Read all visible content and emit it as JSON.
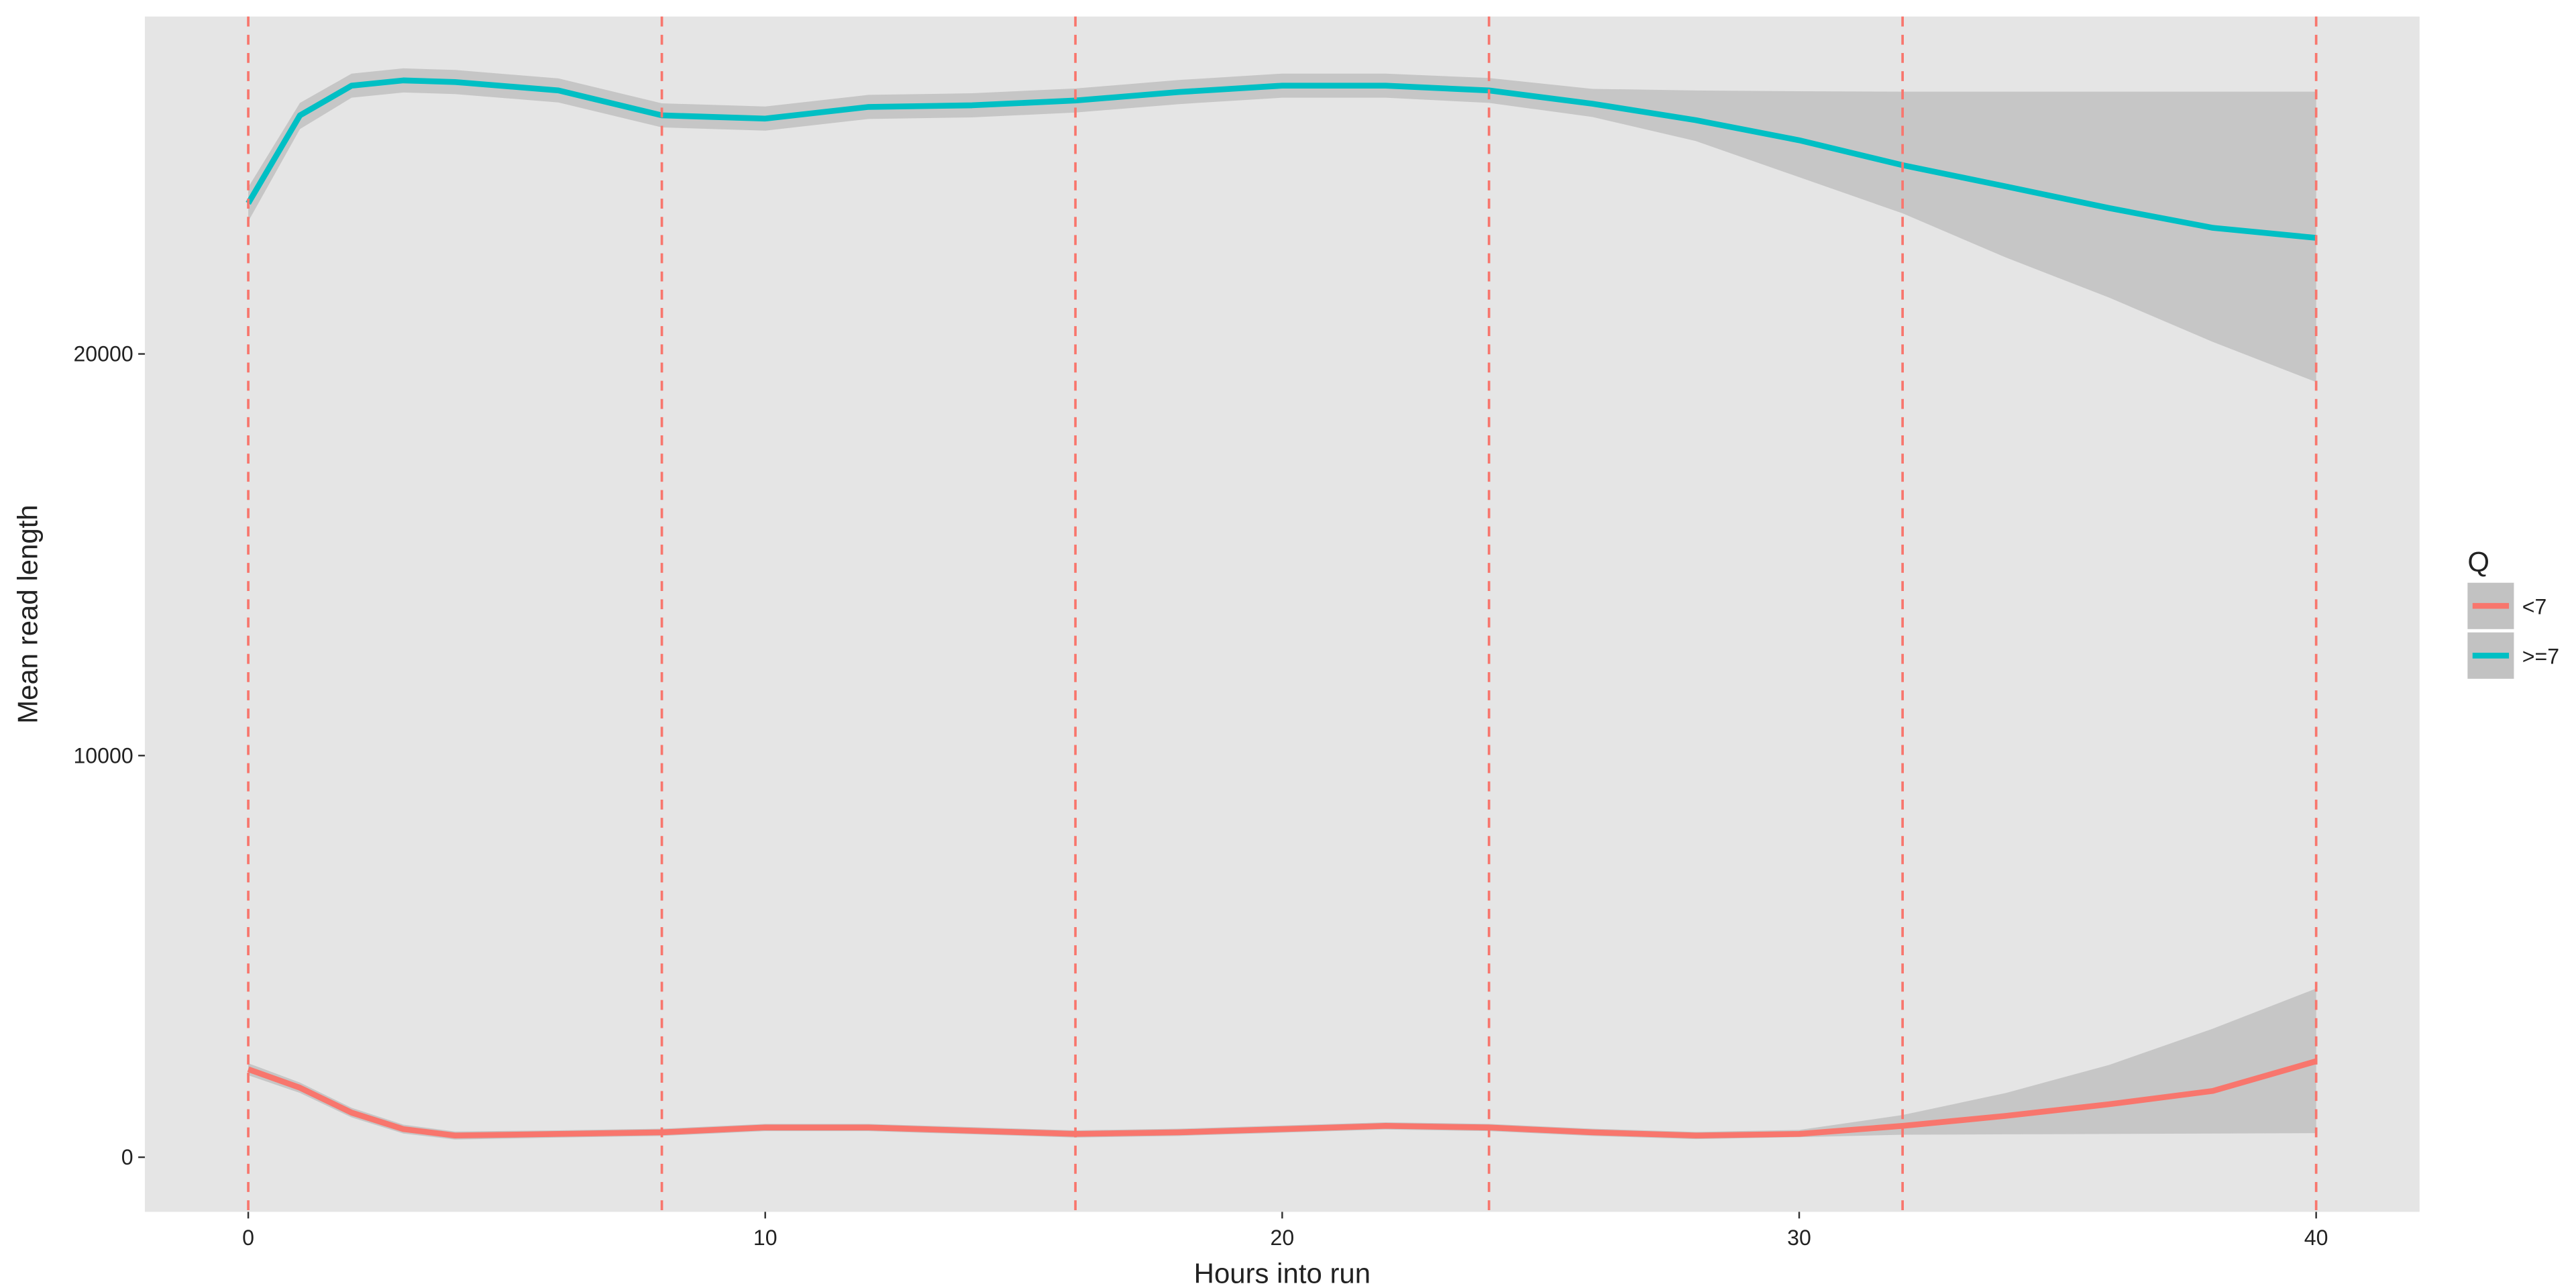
{
  "chart_data": {
    "type": "line",
    "xlabel": "Hours into run",
    "ylabel": "Mean read length",
    "x": [
      0,
      1,
      2,
      3,
      4,
      6,
      8,
      10,
      12,
      14,
      16,
      18,
      20,
      22,
      24,
      26,
      28,
      30,
      32,
      34,
      36,
      38,
      40
    ],
    "series": [
      {
        "name": "<7",
        "color": "#F8766D",
        "values": [
          2190,
          1730,
          1110,
          700,
          540,
          580,
          620,
          740,
          740,
          660,
          580,
          620,
          700,
          780,
          740,
          620,
          540,
          580,
          780,
          1030,
          1320,
          1650,
          2390
        ],
        "lower": [
          2040,
          1600,
          990,
          590,
          440,
          490,
          530,
          650,
          650,
          570,
          490,
          530,
          610,
          690,
          650,
          530,
          450,
          500,
          560,
          570,
          580,
          590,
          600
        ],
        "upper": [
          2340,
          1860,
          1230,
          810,
          640,
          670,
          710,
          830,
          830,
          750,
          670,
          710,
          790,
          870,
          830,
          710,
          630,
          680,
          1050,
          1600,
          2300,
          3200,
          4200
        ]
      },
      {
        "name": ">=7",
        "color": "#00BFC4",
        "values": [
          23750,
          25940,
          26680,
          26810,
          26770,
          26560,
          25940,
          25860,
          26150,
          26190,
          26310,
          26520,
          26680,
          26680,
          26560,
          26230,
          25820,
          25320,
          24700,
          24170,
          23630,
          23140,
          22890
        ],
        "lower": [
          23300,
          25600,
          26380,
          26510,
          26470,
          26260,
          25640,
          25560,
          25850,
          25890,
          26010,
          26220,
          26380,
          26380,
          26250,
          25900,
          25300,
          24400,
          23500,
          22400,
          21400,
          20300,
          19300
        ],
        "upper": [
          24150,
          26250,
          26980,
          27110,
          27070,
          26860,
          26240,
          26160,
          26450,
          26490,
          26610,
          26820,
          26980,
          26980,
          26870,
          26600,
          26560,
          26540,
          26530,
          26530,
          26530,
          26530,
          26530
        ]
      }
    ],
    "band_color": "#999999",
    "vlines": [
      0,
      8,
      16,
      24,
      32,
      40
    ],
    "vline_color": "#F8766D",
    "xlim": [
      -2,
      42
    ],
    "xticks": [
      0,
      10,
      20,
      30,
      40
    ],
    "ylim": [
      -1360,
      28400
    ],
    "yticks": [
      0,
      10000,
      20000
    ],
    "grid": true,
    "legend_title": "Q",
    "legend": "right"
  }
}
